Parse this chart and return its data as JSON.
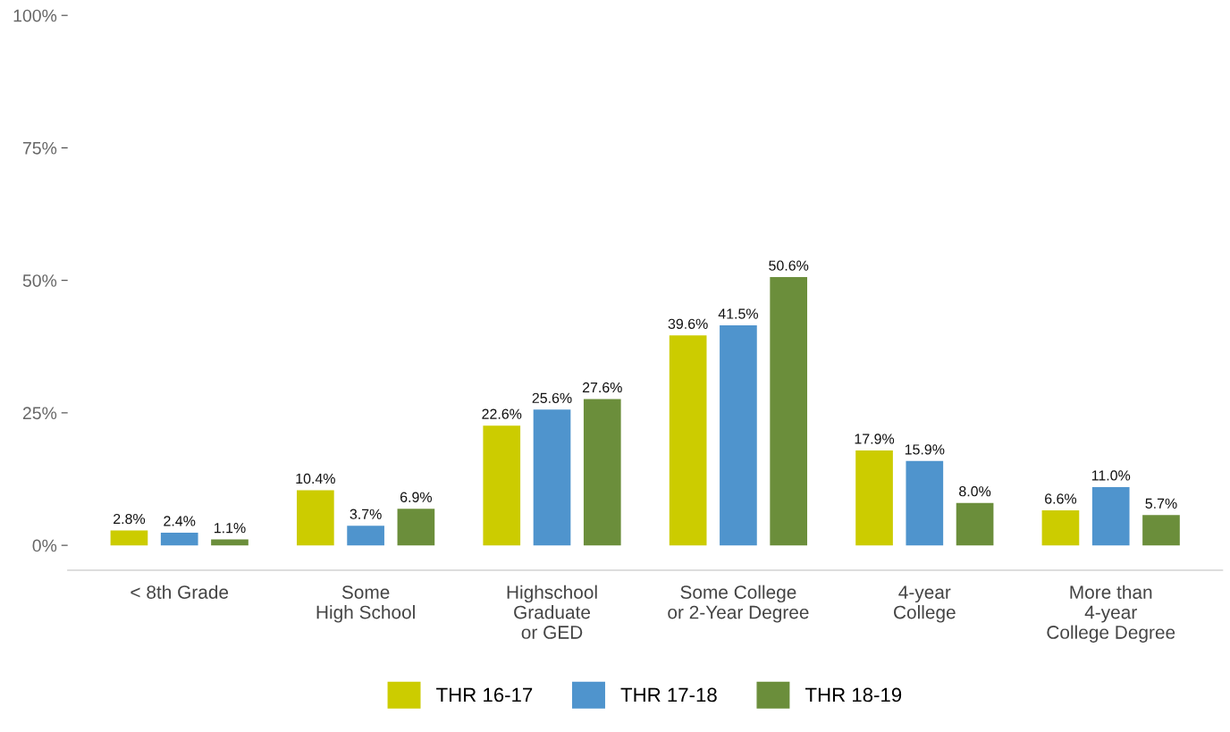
{
  "chart_data": {
    "type": "bar",
    "categories": [
      "< 8th Grade",
      "Some\nHigh School",
      "Highschool\nGraduate\nor GED",
      "Some College\nor 2-Year Degree",
      "4-year\nCollege",
      "More than\n4-year\nCollege Degree"
    ],
    "series": [
      {
        "name": "THR 16-17",
        "color": "#cccc00",
        "values": [
          2.8,
          10.4,
          22.6,
          39.6,
          17.9,
          6.6
        ],
        "value_labels": [
          "2.8%",
          "10.4%",
          "22.6%",
          "39.6%",
          "17.9%",
          "6.6%"
        ]
      },
      {
        "name": "THR 17-18",
        "color": "#4f94cd",
        "values": [
          2.4,
          3.7,
          25.6,
          41.5,
          15.9,
          11.0
        ],
        "value_labels": [
          "2.4%",
          "3.7%",
          "25.6%",
          "41.5%",
          "15.9%",
          "11.0%"
        ]
      },
      {
        "name": "THR 18-19",
        "color": "#6b8e3b",
        "values": [
          1.1,
          6.9,
          27.6,
          50.6,
          8.0,
          5.7
        ],
        "value_labels": [
          "1.1%",
          "6.9%",
          "27.6%",
          "50.6%",
          "8.0%",
          "5.7%"
        ]
      }
    ],
    "ylim": [
      -4.7,
      100
    ],
    "yticks": [
      {
        "value": 0,
        "label": "0%"
      },
      {
        "value": 25,
        "label": "25%"
      },
      {
        "value": 50,
        "label": "50%"
      },
      {
        "value": 75,
        "label": "75%"
      },
      {
        "value": 100,
        "label": "100%"
      }
    ],
    "grid": false,
    "legend": "bottom"
  }
}
